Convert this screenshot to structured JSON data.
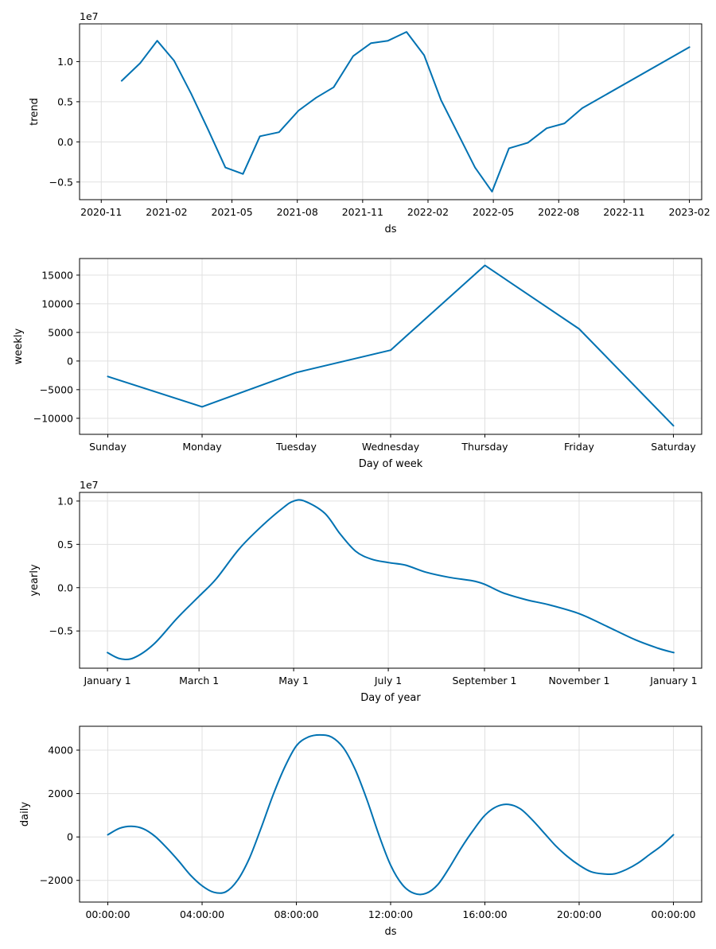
{
  "chart_data": [
    {
      "type": "line",
      "name": "trend",
      "xlabel": "ds",
      "ylabel": "trend",
      "y_offset_label": "1e7",
      "y_scale": 10000000,
      "grid": true,
      "xlim": [
        2020.75,
        2023.13
      ],
      "ylim": [
        -0.72,
        1.47
      ],
      "x_ticks": [
        {
          "value": 2020.833,
          "label": "2020-11"
        },
        {
          "value": 2021.083,
          "label": "2021-02"
        },
        {
          "value": 2021.333,
          "label": "2021-05"
        },
        {
          "value": 2021.583,
          "label": "2021-08"
        },
        {
          "value": 2021.833,
          "label": "2021-11"
        },
        {
          "value": 2022.083,
          "label": "2022-02"
        },
        {
          "value": 2022.333,
          "label": "2022-05"
        },
        {
          "value": 2022.583,
          "label": "2022-08"
        },
        {
          "value": 2022.833,
          "label": "2022-11"
        },
        {
          "value": 2023.083,
          "label": "2023-02"
        }
      ],
      "y_ticks": [
        {
          "value": -0.5,
          "label": "−0.5"
        },
        {
          "value": 0.0,
          "label": "0.0"
        },
        {
          "value": 0.5,
          "label": "0.5"
        },
        {
          "value": 1.0,
          "label": "1.0"
        }
      ],
      "series": [
        {
          "x": [
            2020.911,
            2020.982,
            2021.047,
            2021.112,
            2021.177,
            2021.242,
            2021.308,
            2021.375,
            2021.44,
            2021.513,
            2021.588,
            2021.655,
            2021.722,
            2021.797,
            2021.865,
            2021.93,
            2022.001,
            2022.068,
            2022.133,
            2022.198,
            2022.263,
            2022.328,
            2022.393,
            2022.465,
            2022.537,
            2022.605,
            2022.673,
            2023.083
          ],
          "y": [
            0.76,
            0.98,
            1.26,
            1.01,
            0.6,
            0.15,
            -0.32,
            -0.4,
            0.07,
            0.12,
            0.39,
            0.55,
            0.68,
            1.07,
            1.23,
            1.26,
            1.37,
            1.08,
            0.52,
            0.1,
            -0.32,
            -0.62,
            -0.08,
            -0.01,
            0.17,
            0.23,
            0.42,
            1.18
          ]
        }
      ]
    },
    {
      "type": "line",
      "name": "weekly",
      "xlabel": "Day of week",
      "ylabel": "weekly",
      "grid": true,
      "xlim": [
        -0.3,
        6.3
      ],
      "ylim": [
        -12800,
        17900
      ],
      "categories": [
        "Sunday",
        "Monday",
        "Tuesday",
        "Wednesday",
        "Thursday",
        "Friday",
        "Saturday"
      ],
      "y_ticks": [
        {
          "value": -10000,
          "label": "−10000"
        },
        {
          "value": -5000,
          "label": "−5000"
        },
        {
          "value": 0,
          "label": "0"
        },
        {
          "value": 5000,
          "label": "5000"
        },
        {
          "value": 10000,
          "label": "10000"
        },
        {
          "value": 15000,
          "label": "15000"
        }
      ],
      "series": [
        {
          "values": [
            -2700,
            -8000,
            -2000,
            1900,
            16700,
            5600,
            -11300
          ]
        }
      ]
    },
    {
      "type": "line",
      "name": "yearly",
      "xlabel": "Day of year",
      "ylabel": "yearly",
      "y_offset_label": "1e7",
      "y_scale": 10000000,
      "grid": true,
      "xlim": [
        -18,
        383
      ],
      "ylim": [
        -0.93,
        1.1
      ],
      "x_ticks": [
        {
          "value": 0,
          "label": "January 1"
        },
        {
          "value": 59,
          "label": "March 1"
        },
        {
          "value": 120,
          "label": "May 1"
        },
        {
          "value": 181,
          "label": "July 1"
        },
        {
          "value": 243,
          "label": "September 1"
        },
        {
          "value": 304,
          "label": "November 1"
        },
        {
          "value": 365,
          "label": "January 1"
        }
      ],
      "y_ticks": [
        {
          "value": -0.5,
          "label": "−0.5"
        },
        {
          "value": 0.0,
          "label": "0.0"
        },
        {
          "value": 0.5,
          "label": "0.5"
        },
        {
          "value": 1.0,
          "label": "1.0"
        }
      ],
      "series": [
        {
          "x": [
            0,
            8,
            17,
            30,
            45,
            59,
            70,
            85,
            100,
            113,
            120,
            127,
            140,
            150,
            160,
            170,
            181,
            192,
            205,
            220,
            235,
            243,
            255,
            270,
            285,
            304,
            320,
            340,
            355,
            365
          ],
          "y": [
            -0.75,
            -0.82,
            -0.81,
            -0.65,
            -0.35,
            -0.1,
            0.1,
            0.45,
            0.72,
            0.92,
            1.0,
            1.0,
            0.86,
            0.62,
            0.42,
            0.33,
            0.29,
            0.26,
            0.18,
            0.12,
            0.08,
            0.04,
            -0.06,
            -0.14,
            -0.2,
            -0.3,
            -0.43,
            -0.6,
            -0.7,
            -0.75
          ]
        }
      ]
    },
    {
      "type": "line",
      "name": "daily",
      "xlabel": "ds",
      "ylabel": "daily",
      "grid": true,
      "xlim": [
        -1.2,
        25.2
      ],
      "ylim": [
        -3000,
        5100
      ],
      "x_ticks": [
        {
          "value": 0,
          "label": "00:00:00"
        },
        {
          "value": 4,
          "label": "04:00:00"
        },
        {
          "value": 8,
          "label": "08:00:00"
        },
        {
          "value": 12,
          "label": "12:00:00"
        },
        {
          "value": 16,
          "label": "16:00:00"
        },
        {
          "value": 20,
          "label": "20:00:00"
        },
        {
          "value": 24,
          "label": "00:00:00"
        }
      ],
      "y_ticks": [
        {
          "value": -2000,
          "label": "−2000"
        },
        {
          "value": 0,
          "label": "0"
        },
        {
          "value": 2000,
          "label": "2000"
        },
        {
          "value": 4000,
          "label": "4000"
        }
      ],
      "series": [
        {
          "x": [
            0,
            0.5,
            1,
            1.5,
            2,
            2.5,
            3,
            3.5,
            4,
            4.5,
            5,
            5.5,
            6,
            6.5,
            7,
            7.5,
            8,
            8.5,
            9,
            9.5,
            10,
            10.5,
            11,
            11.5,
            12,
            12.5,
            13,
            13.5,
            14,
            14.5,
            15,
            15.5,
            16,
            16.5,
            17,
            17.5,
            18,
            18.5,
            19,
            19.5,
            20,
            20.5,
            21,
            21.5,
            22,
            22.5,
            23,
            23.5,
            24
          ],
          "y": [
            100,
            400,
            490,
            380,
            30,
            -500,
            -1100,
            -1750,
            -2250,
            -2550,
            -2530,
            -2000,
            -1000,
            400,
            1900,
            3200,
            4200,
            4600,
            4700,
            4600,
            4100,
            3100,
            1700,
            100,
            -1300,
            -2200,
            -2600,
            -2600,
            -2200,
            -1400,
            -500,
            300,
            1000,
            1400,
            1500,
            1300,
            800,
            200,
            -400,
            -900,
            -1300,
            -1600,
            -1700,
            -1700,
            -1500,
            -1200,
            -800,
            -400,
            100
          ]
        }
      ]
    }
  ]
}
